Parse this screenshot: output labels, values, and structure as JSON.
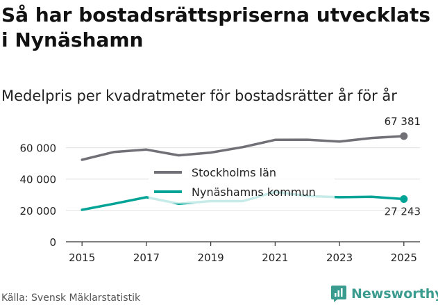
{
  "title": "Så har bostadsrättspriserna utvecklats i Nynäshamn",
  "subtitle": "Medelpris per kvadratmeter för bostadsrätter år för år",
  "source": "Källa: Svensk Mäklarstatistik",
  "brand": "Newsworthy",
  "colors": {
    "stockholm": "#707076",
    "nynashamn": "#00a396",
    "grid": "#e0e0e0",
    "axis": "#333333",
    "brand": "#3a9b8f"
  },
  "chart_data": {
    "type": "line",
    "title": "Medelpris per kvadratmeter för bostadsrätter år för år",
    "xlabel": "",
    "ylabel": "",
    "x": [
      2015,
      2016,
      2017,
      2018,
      2019,
      2020,
      2021,
      2022,
      2023,
      2024,
      2025
    ],
    "xticks": [
      "2015",
      "2017",
      "2019",
      "2021",
      "2023",
      "2025"
    ],
    "yticks": [
      0,
      20000,
      40000,
      60000
    ],
    "ytick_labels": [
      "0",
      "20 000",
      "40 000",
      "60 000"
    ],
    "ylim": [
      0,
      70000
    ],
    "xlim": [
      2014.5,
      2025.5
    ],
    "grid": true,
    "legend_position": "center",
    "series": [
      {
        "name": "Stockholms län",
        "values": [
          52300,
          57300,
          58800,
          55100,
          56900,
          60400,
          65000,
          65100,
          63900,
          66200,
          67381
        ],
        "end_label": "67 381"
      },
      {
        "name": "Nynäshamns kommun",
        "values": [
          20400,
          24300,
          28400,
          24300,
          25900,
          25900,
          31800,
          29200,
          28400,
          28700,
          27243
        ],
        "end_label": "27 243"
      }
    ]
  }
}
